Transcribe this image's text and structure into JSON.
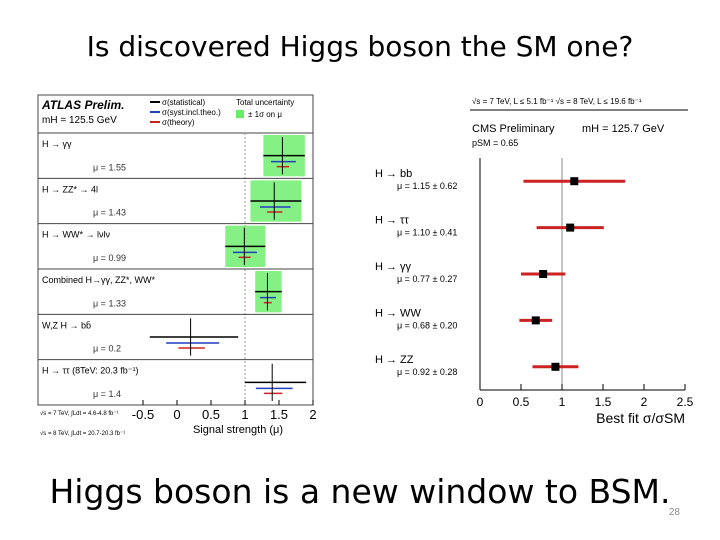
{
  "slide": {
    "title": "Is discovered Higgs boson the SM one?",
    "footer": "Higgs boson is a new window to BSM.",
    "page_number": "28"
  },
  "chart_data": [
    {
      "type": "scatter",
      "title": "ATLAS Prelim.",
      "subtitle": "mH = 125.5 GeV",
      "xlabel": "Signal strength (μ)",
      "xlim": [
        -0.5,
        2.0
      ],
      "xticks": [
        "-0.5",
        "0",
        "0.5",
        "1",
        "1.5",
        "2"
      ],
      "legend": [
        "σ(statistical)",
        "σ(syst.incl.theo.)",
        "σ(theory)",
        "Total uncertainty",
        "± 1σ on μ"
      ],
      "legend_placement": "top",
      "colors": {
        "statistical": "#000000",
        "syst": "#1f3fbf",
        "theory": "#cc2222",
        "band": "#66ee66"
      },
      "channels": [
        {
          "label": "H → γγ",
          "mu_text": "μ = 1.55",
          "mu": 1.55,
          "err_up": 0.33,
          "err_down": 0.28
        },
        {
          "label": "H → ZZ* → 4l",
          "mu_text": "μ = 1.43",
          "mu": 1.43,
          "err_up": 0.4,
          "err_down": 0.35
        },
        {
          "label": "H → WW* → lνlν",
          "mu_text": "μ = 0.99",
          "mu": 0.99,
          "err_up": 0.31,
          "err_down": 0.28
        },
        {
          "label": "Combined H→γγ, ZZ*, WW*",
          "mu_text": "μ = 1.33",
          "mu": 1.33,
          "err_up": 0.21,
          "err_down": 0.18
        },
        {
          "label": "W,Z H → bb̄",
          "mu_text": "μ = 0.2",
          "mu": 0.2,
          "err_up": 0.7,
          "err_down": 0.6
        },
        {
          "label": "H → ττ (8TeV: 20.3 fb⁻¹)",
          "mu_text": "μ = 1.4",
          "mu": 1.4,
          "err_up": 0.5,
          "err_down": 0.4
        }
      ],
      "footnotes": [
        "√s = 7 TeV, ∫Ldt = 4.6-4.8 fb⁻¹",
        "√s = 8 TeV, ∫Ldt = 20.7-20.3 fb⁻¹"
      ]
    },
    {
      "type": "scatter",
      "title": "CMS Preliminary",
      "header": "√s = 7 TeV, L ≤ 5.1 fb⁻¹  √s = 8 TeV, L ≤ 19.6 fb⁻¹",
      "subtitle": "mH = 125.7 GeV",
      "p_value": "pSM = 0.65",
      "xlabel": "Best fit σ/σSM",
      "xlim": [
        0,
        2.5
      ],
      "xticks": [
        "0",
        "0.5",
        "1",
        "1.5",
        "2",
        "2.5"
      ],
      "channels": [
        {
          "label": "H → bb",
          "mu_text": "μ = 1.15 ± 0.62",
          "mu": 1.15,
          "err": 0.62
        },
        {
          "label": "H → ττ",
          "mu_text": "μ = 1.10 ± 0.41",
          "mu": 1.1,
          "err": 0.41
        },
        {
          "label": "H → γγ",
          "mu_text": "μ = 0.77 ± 0.27",
          "mu": 0.77,
          "err": 0.27
        },
        {
          "label": "H → WW",
          "mu_text": "μ = 0.68 ± 0.20",
          "mu": 0.68,
          "err": 0.2
        },
        {
          "label": "H → ZZ",
          "mu_text": "μ = 0.92 ± 0.28",
          "mu": 0.92,
          "err": 0.28
        }
      ],
      "colors": {
        "point": "#000000",
        "error": "#cc2222",
        "sm_line": "#888888"
      }
    }
  ]
}
